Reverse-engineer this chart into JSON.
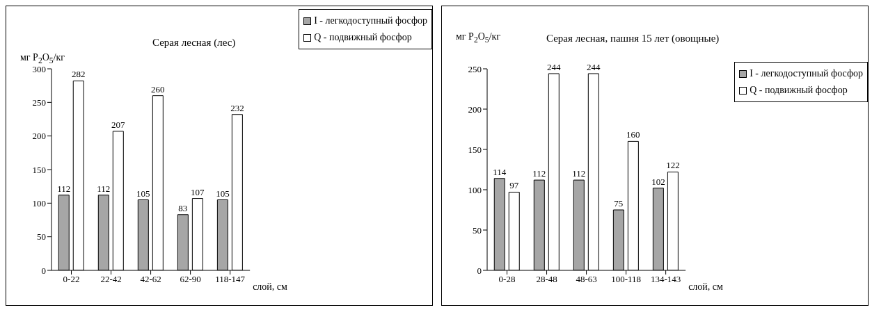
{
  "chart_data": [
    {
      "type": "bar",
      "title": "Серая лесная (лес)",
      "ylabel": "мг P$_{2}$O$_{5}$/кг",
      "xlabel": "слой, см",
      "categories": [
        "0-22",
        "22-42",
        "42-62",
        "62-90",
        "118-147"
      ],
      "series": [
        {
          "name": "I - легкодоступный фосфор",
          "color": "#a6a6a6",
          "values": [
            112,
            112,
            105,
            83,
            105
          ]
        },
        {
          "name": "Q - подвижный фосфор",
          "color": "#ffffff",
          "values": [
            282,
            207,
            260,
            107,
            232
          ]
        }
      ],
      "ylim": [
        0,
        300
      ],
      "yticks": [
        0,
        50,
        100,
        150,
        200,
        250,
        300
      ],
      "data_labels": true,
      "legend": "top right"
    },
    {
      "type": "bar",
      "title": "Серая лесная, пашня 15 лет (овощные)",
      "ylabel": "мг P$_{2}$O$_{5}$/кг",
      "xlabel": "слой, см",
      "categories": [
        "0-28",
        "28-48",
        "48-63",
        "100-118",
        "134-143"
      ],
      "series": [
        {
          "name": "I - легкодоступный фосфор",
          "color": "#a6a6a6",
          "values": [
            114,
            112,
            112,
            75,
            102
          ]
        },
        {
          "name": "Q - подвижный фосфор",
          "color": "#ffffff",
          "values": [
            97,
            244,
            244,
            160,
            122
          ]
        }
      ],
      "ylim": [
        0,
        250
      ],
      "yticks": [
        0,
        50,
        100,
        150,
        200,
        250
      ],
      "data_labels": true,
      "legend": "right"
    }
  ]
}
